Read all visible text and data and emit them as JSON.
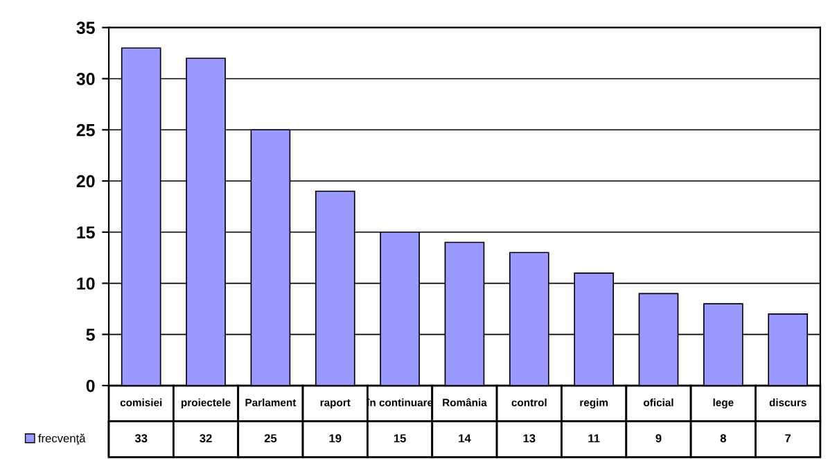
{
  "chart_data": {
    "type": "bar",
    "categories": [
      "comisiei",
      "proiectele",
      "Parlament",
      "raport",
      "în continuare",
      "România",
      "control",
      "regim",
      "oficial",
      "lege",
      "discurs"
    ],
    "series": [
      {
        "name": "frecvenţă",
        "color": "#9999ff",
        "values": [
          33,
          32,
          25,
          19,
          15,
          14,
          13,
          11,
          9,
          8,
          7
        ]
      }
    ],
    "ylim": [
      0,
      35
    ],
    "yticks": [
      0,
      5,
      10,
      15,
      20,
      25,
      30,
      35
    ],
    "grid": "y",
    "data_labels": true,
    "legend": "bottom left"
  }
}
